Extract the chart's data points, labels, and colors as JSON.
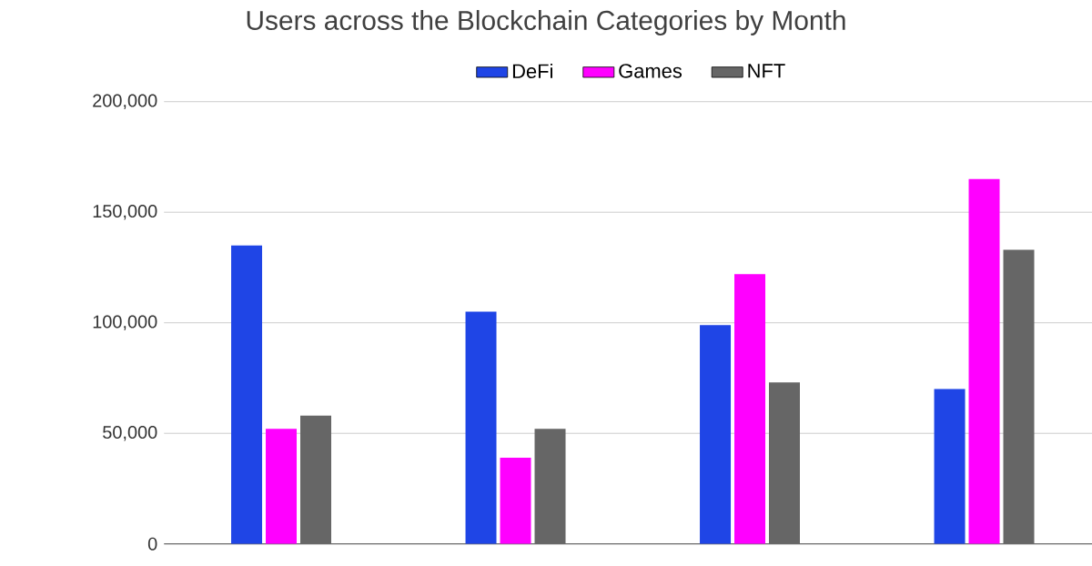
{
  "chart_data": {
    "type": "bar",
    "title": "Users across the Blockchain Categories by Month",
    "categories": [
      null,
      null,
      null,
      null
    ],
    "series": [
      {
        "name": "DeFi",
        "color": "#1f45e6",
        "values": [
          135000,
          105000,
          99000,
          70000
        ]
      },
      {
        "name": "Games",
        "color": "#ff00ff",
        "values": [
          52000,
          39000,
          122000,
          165000
        ]
      },
      {
        "name": "NFT",
        "color": "#666666",
        "values": [
          58000,
          52000,
          73000,
          133000
        ]
      }
    ],
    "ylim": [
      0,
      200000
    ],
    "yticks": [
      {
        "value": 0,
        "label": "0"
      },
      {
        "value": 50000,
        "label": "50,000"
      },
      {
        "value": 100000,
        "label": "100,000"
      },
      {
        "value": 150000,
        "label": "150,000"
      },
      {
        "value": 200000,
        "label": "200,000"
      }
    ],
    "grid": "y",
    "legend": "top"
  }
}
